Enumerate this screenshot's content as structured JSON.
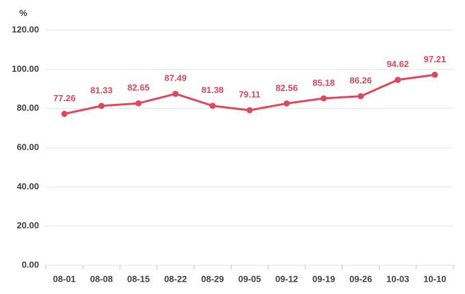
{
  "chart_data": {
    "type": "line",
    "y_unit_label": "%",
    "categories": [
      "08-01",
      "08-08",
      "08-15",
      "08-22",
      "08-29",
      "09-05",
      "09-12",
      "09-19",
      "09-26",
      "10-03",
      "10-10"
    ],
    "series": [
      {
        "color": "#e0475a",
        "values": [
          77.26,
          81.33,
          82.65,
          87.49,
          81.38,
          79.11,
          82.56,
          85.18,
          86.26,
          94.62,
          97.21
        ]
      }
    ],
    "ylim": [
      0,
      120
    ],
    "yticks": [
      {
        "value": 0,
        "label": "0.00"
      },
      {
        "value": 20,
        "label": "20.00"
      },
      {
        "value": 40,
        "label": "40.00"
      },
      {
        "value": 60,
        "label": "60.00"
      },
      {
        "value": 80,
        "label": "80.00"
      },
      {
        "value": 100,
        "label": "100.00"
      },
      {
        "value": 120,
        "label": "120.00"
      }
    ],
    "grid": true
  }
}
